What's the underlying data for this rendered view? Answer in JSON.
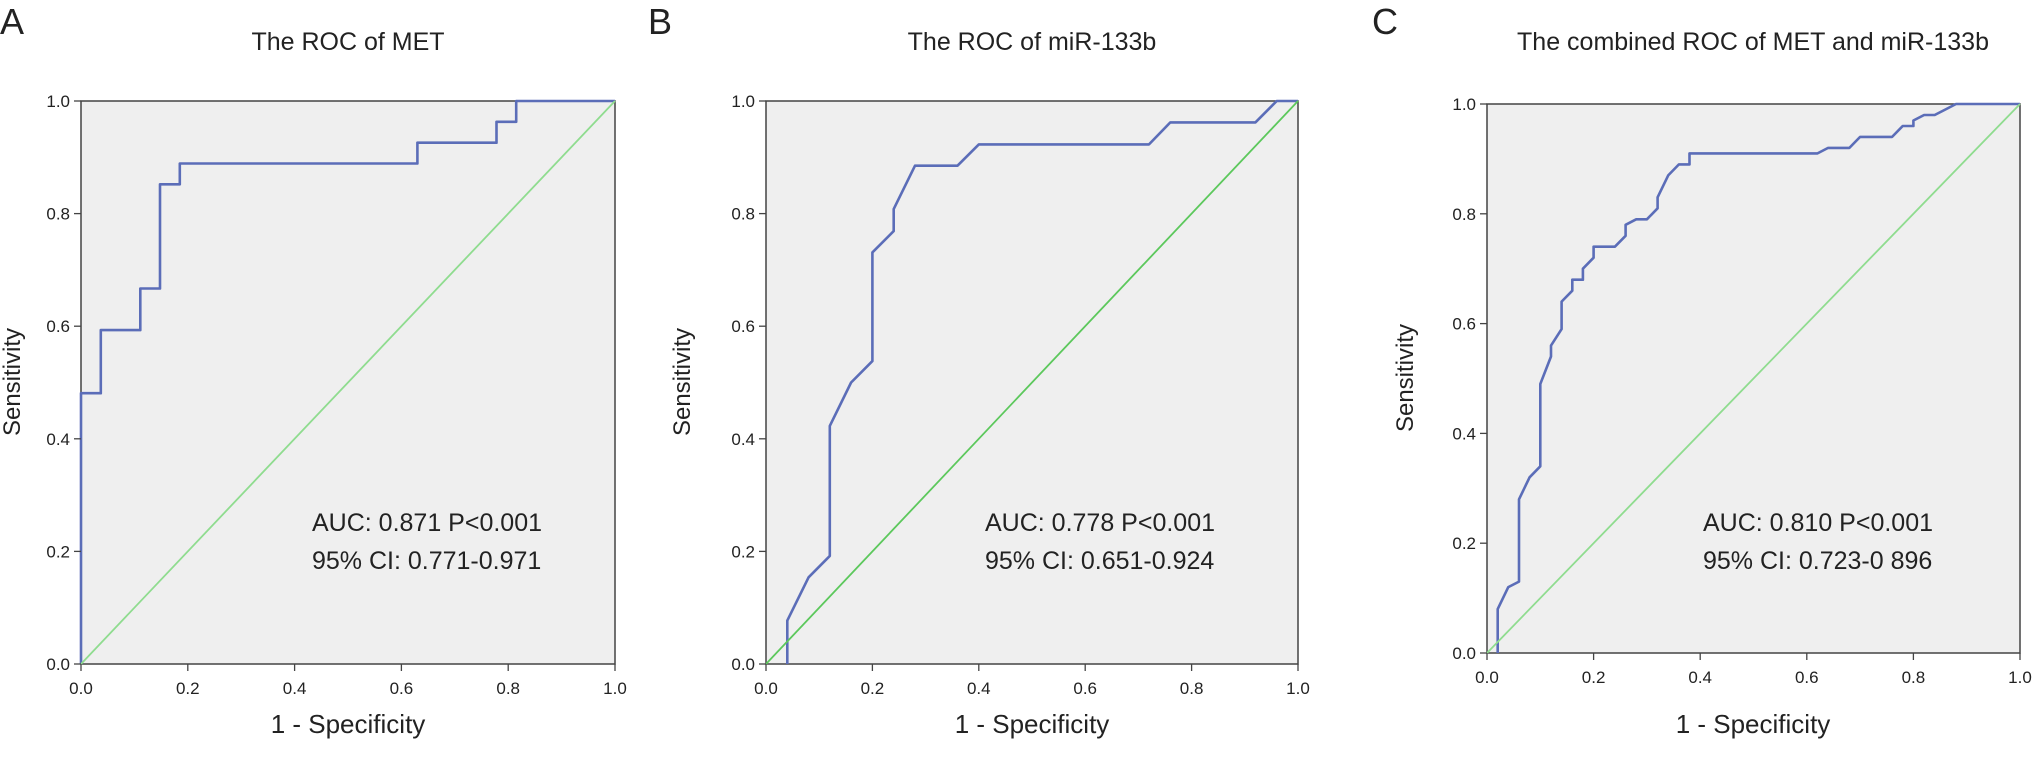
{
  "chart_data": [
    {
      "panel_label": "A",
      "type": "line",
      "title": "The ROC of MET",
      "xlabel": "1 - Specificity",
      "ylabel": "Sensitivity",
      "xlim": [
        0,
        1
      ],
      "ylim": [
        0,
        1
      ],
      "xticks": [
        "0.0",
        "0.2",
        "0.4",
        "0.6",
        "0.8",
        "1.0"
      ],
      "yticks": [
        "0.0",
        "0.2",
        "0.4",
        "0.6",
        "0.8",
        "1.0"
      ],
      "annotations": [
        "AUC: 0.871 P<0.001",
        "95% CI: 0.771-0.971"
      ],
      "series": [
        {
          "role": "roc",
          "color": "#5b6db8",
          "points": [
            [
              0,
              0
            ],
            [
              0,
              0.481
            ],
            [
              0.037,
              0.481
            ],
            [
              0.037,
              0.593
            ],
            [
              0.111,
              0.593
            ],
            [
              0.111,
              0.667
            ],
            [
              0.148,
              0.667
            ],
            [
              0.148,
              0.852
            ],
            [
              0.185,
              0.852
            ],
            [
              0.185,
              0.889
            ],
            [
              0.63,
              0.889
            ],
            [
              0.63,
              0.926
            ],
            [
              0.778,
              0.926
            ],
            [
              0.778,
              0.963
            ],
            [
              0.815,
              0.963
            ],
            [
              0.815,
              1.0
            ],
            [
              1.0,
              1.0
            ]
          ]
        },
        {
          "role": "reference",
          "color": "#8fdc8f",
          "points": [
            [
              0,
              0
            ],
            [
              1,
              1
            ]
          ]
        }
      ]
    },
    {
      "panel_label": "B",
      "type": "line",
      "title": "The ROC of miR-133b",
      "xlabel": "1 - Specificity",
      "ylabel": "Sensitivity",
      "xlim": [
        0,
        1
      ],
      "ylim": [
        0,
        1
      ],
      "xticks": [
        "0.0",
        "0.2",
        "0.4",
        "0.6",
        "0.8",
        "1.0"
      ],
      "yticks": [
        "0.0",
        "0.2",
        "0.4",
        "0.6",
        "0.8",
        "1.0"
      ],
      "annotations": [
        "AUC: 0.778 P<0.001",
        "95% CI: 0.651-0.924"
      ],
      "series": [
        {
          "role": "roc",
          "color": "#5b6db8",
          "points": [
            [
              0.04,
              0
            ],
            [
              0.04,
              0.077
            ],
            [
              0.08,
              0.154
            ],
            [
              0.12,
              0.192
            ],
            [
              0.12,
              0.423
            ],
            [
              0.16,
              0.5
            ],
            [
              0.2,
              0.538
            ],
            [
              0.2,
              0.731
            ],
            [
              0.24,
              0.769
            ],
            [
              0.24,
              0.808
            ],
            [
              0.28,
              0.885
            ],
            [
              0.36,
              0.885
            ],
            [
              0.4,
              0.923
            ],
            [
              0.72,
              0.923
            ],
            [
              0.76,
              0.962
            ],
            [
              0.92,
              0.962
            ],
            [
              0.96,
              1.0
            ],
            [
              1.0,
              1.0
            ]
          ]
        },
        {
          "role": "reference",
          "color": "#5cc85c",
          "points": [
            [
              0,
              0
            ],
            [
              1,
              1
            ]
          ]
        }
      ]
    },
    {
      "panel_label": "C",
      "type": "line",
      "title": "The combined ROC of MET and miR-133b",
      "xlabel": "1 - Specificity",
      "ylabel": "Sensitivity",
      "xlim": [
        0,
        1
      ],
      "ylim": [
        0,
        1
      ],
      "xticks": [
        "0.0",
        "0.2",
        "0.4",
        "0.6",
        "0.8",
        "1.0"
      ],
      "yticks": [
        "0.0",
        "0.2",
        "0.4",
        "0.6",
        "0.8",
        "1.0"
      ],
      "annotations": [
        "AUC: 0.810 P<0.001",
        "95% CI: 0.723-0 896"
      ],
      "series": [
        {
          "role": "roc",
          "color": "#5b6db8",
          "points": [
            [
              0.02,
              0
            ],
            [
              0.02,
              0.08
            ],
            [
              0.04,
              0.12
            ],
            [
              0.06,
              0.13
            ],
            [
              0.06,
              0.28
            ],
            [
              0.08,
              0.32
            ],
            [
              0.1,
              0.34
            ],
            [
              0.1,
              0.49
            ],
            [
              0.12,
              0.54
            ],
            [
              0.12,
              0.56
            ],
            [
              0.14,
              0.59
            ],
            [
              0.14,
              0.64
            ],
            [
              0.16,
              0.66
            ],
            [
              0.16,
              0.68
            ],
            [
              0.18,
              0.68
            ],
            [
              0.18,
              0.7
            ],
            [
              0.2,
              0.72
            ],
            [
              0.2,
              0.74
            ],
            [
              0.24,
              0.74
            ],
            [
              0.26,
              0.76
            ],
            [
              0.26,
              0.78
            ],
            [
              0.28,
              0.79
            ],
            [
              0.3,
              0.79
            ],
            [
              0.32,
              0.81
            ],
            [
              0.32,
              0.83
            ],
            [
              0.34,
              0.87
            ],
            [
              0.36,
              0.89
            ],
            [
              0.38,
              0.89
            ],
            [
              0.38,
              0.91
            ],
            [
              0.62,
              0.91
            ],
            [
              0.64,
              0.92
            ],
            [
              0.68,
              0.92
            ],
            [
              0.7,
              0.94
            ],
            [
              0.76,
              0.94
            ],
            [
              0.78,
              0.96
            ],
            [
              0.8,
              0.96
            ],
            [
              0.8,
              0.97
            ],
            [
              0.82,
              0.98
            ],
            [
              0.84,
              0.98
            ],
            [
              0.86,
              0.99
            ],
            [
              0.88,
              1.0
            ],
            [
              1.0,
              1.0
            ]
          ]
        },
        {
          "role": "reference",
          "color": "#8fdc8f",
          "points": [
            [
              0,
              0
            ],
            [
              1,
              1
            ]
          ]
        }
      ]
    }
  ]
}
